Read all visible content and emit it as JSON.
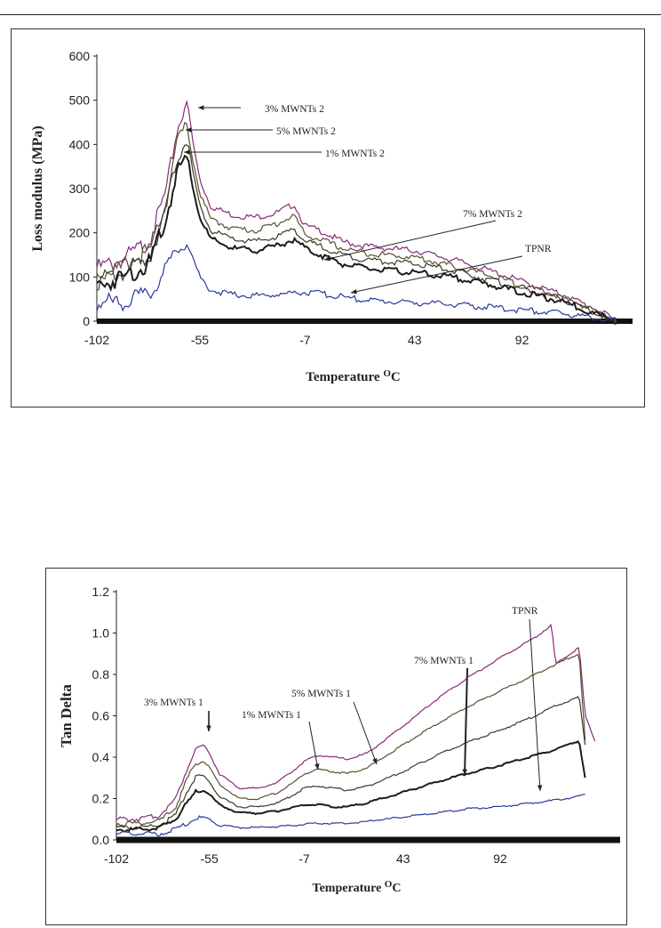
{
  "chart_data": [
    {
      "type": "line",
      "xlabel": "Temperature",
      "xlabel_unit": "oC",
      "ylabel": "Loss modulus (MPa)",
      "xlim": [
        -102,
        140
      ],
      "ylim": [
        0,
        600
      ],
      "x_ticks": [
        "-102",
        "-55",
        "-7",
        "43",
        "92"
      ],
      "y_ticks": [
        "0",
        "100",
        "200",
        "300",
        "400",
        "500",
        "600"
      ],
      "grid": false,
      "colors": {
        "3% MWNTs 2": "#8a2a7a",
        "5% MWNTs 2": "#5a5030",
        "1% MWNTs 2": "#3a3a28",
        "7% MWNTs 2": "#1c1c1c",
        "TPNR": "#2a3a9a"
      },
      "annotations": [
        "3% MWNTs 2",
        "5% MWNTs 2",
        "1% MWNTs 2",
        "7% MWNTs 2",
        "TPNR"
      ],
      "series": [
        {
          "name": "3% MWNTs 2",
          "x": [
            -102,
            -90,
            -78,
            -70,
            -66,
            -62,
            -60,
            -58,
            -55,
            -50,
            -40,
            -30,
            -20,
            -12,
            -7,
            0,
            10,
            20,
            30,
            43,
            60,
            80,
            92,
            110,
            125,
            135
          ],
          "y": [
            120,
            140,
            180,
            300,
            420,
            490,
            470,
            400,
            320,
            260,
            240,
            235,
            245,
            265,
            215,
            205,
            180,
            170,
            165,
            160,
            140,
            110,
            90,
            60,
            30,
            0
          ]
        },
        {
          "name": "5% MWNTs 2",
          "x": [
            -102,
            -90,
            -78,
            -70,
            -66,
            -62,
            -60,
            -58,
            -55,
            -50,
            -40,
            -30,
            -20,
            -12,
            -7,
            0,
            10,
            20,
            30,
            43,
            60,
            80,
            92,
            110,
            125,
            135
          ],
          "y": [
            105,
            125,
            160,
            280,
            390,
            440,
            420,
            360,
            290,
            230,
            210,
            205,
            220,
            240,
            195,
            185,
            165,
            155,
            150,
            145,
            125,
            100,
            80,
            55,
            25,
            0
          ]
        },
        {
          "name": "1% MWNTs 2",
          "x": [
            -102,
            -90,
            -78,
            -70,
            -66,
            -62,
            -60,
            -58,
            -55,
            -50,
            -40,
            -30,
            -20,
            -12,
            -7,
            0,
            10,
            20,
            30,
            43,
            60,
            80,
            92,
            110,
            125,
            135
          ],
          "y": [
            90,
            110,
            145,
            260,
            360,
            410,
            390,
            330,
            260,
            205,
            185,
            180,
            190,
            210,
            180,
            170,
            150,
            140,
            135,
            130,
            115,
            90,
            75,
            50,
            20,
            0
          ]
        },
        {
          "name": "7% MWNTs 2",
          "x": [
            -102,
            -90,
            -78,
            -70,
            -66,
            -62,
            -60,
            -58,
            -55,
            -50,
            -40,
            -30,
            -20,
            -12,
            -7,
            0,
            10,
            20,
            30,
            43,
            60,
            80,
            92,
            110,
            125,
            135
          ],
          "y": [
            80,
            100,
            130,
            240,
            330,
            370,
            355,
            300,
            235,
            185,
            165,
            160,
            170,
            185,
            165,
            150,
            130,
            120,
            115,
            110,
            100,
            80,
            65,
            45,
            18,
            0
          ]
        },
        {
          "name": "TPNR",
          "x": [
            -102,
            -90,
            -78,
            -70,
            -66,
            -62,
            -60,
            -58,
            -55,
            -50,
            -40,
            -30,
            -20,
            -12,
            -7,
            0,
            10,
            20,
            30,
            43,
            60,
            80,
            92,
            110,
            125,
            135
          ],
          "y": [
            40,
            45,
            60,
            120,
            160,
            180,
            170,
            140,
            100,
            70,
            60,
            58,
            60,
            64,
            66,
            62,
            55,
            48,
            45,
            42,
            38,
            30,
            25,
            18,
            8,
            0
          ]
        }
      ]
    },
    {
      "type": "line",
      "xlabel": "Temperature",
      "xlabel_unit": "oC",
      "ylabel": "Tan Delta",
      "xlim": [
        -102,
        150
      ],
      "ylim": [
        0,
        1.2
      ],
      "x_ticks": [
        "-102",
        "-55",
        "-7",
        "43",
        "92"
      ],
      "y_ticks": [
        "0.0",
        "0.2",
        "0.4",
        "0.6",
        "0.8",
        "1.0",
        "1.2"
      ],
      "grid": false,
      "colors": {
        "3% MWNTs 1": "#8a2a7a",
        "5% MWNTs 1": "#5a5030",
        "1% MWNTs 1": "#3a3a28",
        "7% MWNTs 1": "#1c1c1c",
        "TPNR": "#2a3a9a"
      },
      "annotations": [
        "3% MWNTs 1",
        "1% MWNTs 1",
        "5% MWNTs 1",
        "7% MWNTs 1",
        "TPNR"
      ],
      "series": [
        {
          "name": "3% MWNTs 1",
          "x": [
            -102,
            -90,
            -80,
            -72,
            -66,
            -62,
            -58,
            -55,
            -50,
            -40,
            -30,
            -20,
            -12,
            -7,
            0,
            8,
            15,
            25,
            43,
            60,
            75,
            92,
            110,
            118,
            120,
            132,
            135,
            140
          ],
          "y": [
            0.1,
            0.1,
            0.12,
            0.2,
            0.35,
            0.44,
            0.46,
            0.42,
            0.32,
            0.25,
            0.25,
            0.28,
            0.34,
            0.38,
            0.41,
            0.4,
            0.39,
            0.42,
            0.55,
            0.68,
            0.78,
            0.88,
            0.98,
            1.04,
            0.85,
            0.93,
            0.6,
            0.48
          ]
        },
        {
          "name": "5% MWNTs 1",
          "x": [
            -102,
            -90,
            -80,
            -72,
            -66,
            -62,
            -58,
            -55,
            -50,
            -40,
            -30,
            -20,
            -12,
            -7,
            0,
            8,
            15,
            25,
            43,
            60,
            75,
            92,
            110,
            118,
            132,
            135
          ],
          "y": [
            0.08,
            0.08,
            0.09,
            0.16,
            0.3,
            0.37,
            0.38,
            0.35,
            0.27,
            0.2,
            0.2,
            0.23,
            0.28,
            0.32,
            0.34,
            0.33,
            0.32,
            0.35,
            0.46,
            0.56,
            0.64,
            0.72,
            0.8,
            0.84,
            0.9,
            0.48
          ]
        },
        {
          "name": "1% MWNTs 1",
          "x": [
            -102,
            -90,
            -80,
            -72,
            -66,
            -62,
            -58,
            -55,
            -50,
            -40,
            -30,
            -20,
            -12,
            -7,
            0,
            8,
            15,
            25,
            43,
            60,
            75,
            92,
            110,
            118,
            132,
            135
          ],
          "y": [
            0.06,
            0.06,
            0.07,
            0.12,
            0.24,
            0.3,
            0.31,
            0.28,
            0.21,
            0.16,
            0.16,
            0.18,
            0.22,
            0.25,
            0.26,
            0.25,
            0.24,
            0.26,
            0.33,
            0.41,
            0.47,
            0.53,
            0.6,
            0.64,
            0.69,
            0.46
          ]
        },
        {
          "name": "7% MWNTs 1",
          "x": [
            -102,
            -90,
            -80,
            -72,
            -66,
            -62,
            -58,
            -55,
            -50,
            -40,
            -30,
            -20,
            -12,
            -7,
            0,
            8,
            15,
            25,
            43,
            60,
            75,
            92,
            110,
            118,
            132,
            135
          ],
          "y": [
            0.05,
            0.05,
            0.06,
            0.1,
            0.18,
            0.23,
            0.24,
            0.22,
            0.17,
            0.13,
            0.13,
            0.14,
            0.16,
            0.17,
            0.17,
            0.16,
            0.16,
            0.18,
            0.23,
            0.28,
            0.32,
            0.36,
            0.41,
            0.43,
            0.48,
            0.3
          ]
        },
        {
          "name": "TPNR",
          "x": [
            -102,
            -90,
            -80,
            -72,
            -66,
            -62,
            -58,
            -55,
            -50,
            -40,
            -30,
            -20,
            -12,
            -7,
            0,
            8,
            15,
            25,
            43,
            60,
            75,
            92,
            110,
            118,
            132,
            135
          ],
          "y": [
            0.03,
            0.03,
            0.03,
            0.05,
            0.08,
            0.1,
            0.11,
            0.1,
            0.07,
            0.06,
            0.06,
            0.065,
            0.07,
            0.075,
            0.08,
            0.08,
            0.08,
            0.09,
            0.11,
            0.13,
            0.15,
            0.16,
            0.18,
            0.19,
            0.21,
            0.22
          ]
        }
      ]
    }
  ]
}
